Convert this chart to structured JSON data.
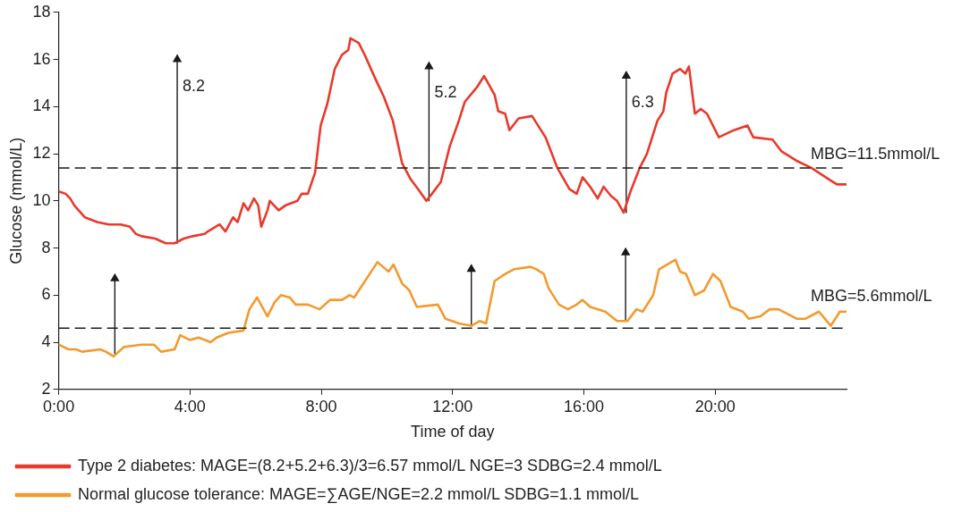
{
  "chart_data": {
    "type": "line",
    "xlabel": "Time of day",
    "ylabel": "Glucose (mmol/L)",
    "xlim": [
      0,
      24
    ],
    "xticks": [
      {
        "value": 0,
        "label": "0:00"
      },
      {
        "value": 4,
        "label": "4:00"
      },
      {
        "value": 8,
        "label": "8:00"
      },
      {
        "value": 12,
        "label": "12:00"
      },
      {
        "value": 16,
        "label": "16:00"
      },
      {
        "value": 20,
        "label": "20:00"
      }
    ],
    "ylim": [
      2,
      18
    ],
    "yticks": [
      2,
      4,
      6,
      8,
      10,
      12,
      14,
      16,
      18
    ],
    "grid": false,
    "legend": "bottom",
    "marker": "none",
    "line_style": "solid",
    "series": [
      {
        "name": "Type 2 diabetes: MAGE=(8.2+5.2+6.3)/3=6.57 mmol/L NGE=3 SDBG=2.4 mmol/L",
        "color": "#e8392c",
        "x": [
          0,
          0.21,
          0.35,
          0.48,
          0.8,
          1.17,
          1.53,
          1.89,
          2.17,
          2.35,
          2.53,
          2.94,
          3.26,
          3.53,
          3.81,
          4.08,
          4.45,
          4.54,
          4.9,
          5.08,
          5.31,
          5.45,
          5.63,
          5.77,
          5.95,
          6.08,
          6.17,
          6.36,
          6.43,
          6.7,
          6.9,
          7.27,
          7.4,
          7.59,
          7.81,
          7.98,
          8.18,
          8.41,
          8.63,
          8.82,
          8.89,
          9.14,
          9.32,
          9.64,
          9.91,
          10.18,
          10.46,
          10.73,
          11.0,
          11.2,
          11.37,
          11.64,
          11.91,
          12.19,
          12.37,
          12.73,
          12.96,
          13.28,
          13.39,
          13.6,
          13.73,
          14.01,
          14.42,
          14.83,
          15.19,
          15.56,
          15.78,
          15.96,
          16.19,
          16.42,
          16.6,
          16.83,
          17.01,
          17.21,
          17.42,
          17.7,
          17.92,
          18.24,
          18.42,
          18.51,
          18.7,
          18.93,
          19.09,
          19.2,
          19.38,
          19.56,
          19.75,
          20.11,
          20.57,
          20.98,
          21.16,
          21.75,
          22.02,
          22.48,
          22.93,
          23.48,
          23.71,
          24
        ],
        "values": [
          10.4,
          10.3,
          10.1,
          9.8,
          9.3,
          9.1,
          9.0,
          9.0,
          8.9,
          8.6,
          8.5,
          8.4,
          8.2,
          8.2,
          8.4,
          8.5,
          8.6,
          8.7,
          9.0,
          8.7,
          9.3,
          9.1,
          9.9,
          9.6,
          10.1,
          9.8,
          8.9,
          9.6,
          10.0,
          9.6,
          9.8,
          10.0,
          10.3,
          10.3,
          11.2,
          13.2,
          14.1,
          15.6,
          16.2,
          16.4,
          16.9,
          16.7,
          16.2,
          15.2,
          14.4,
          13.4,
          11.6,
          10.9,
          10.4,
          10.0,
          10.3,
          10.8,
          12.3,
          13.4,
          14.2,
          14.8,
          15.3,
          14.5,
          13.8,
          13.7,
          13.0,
          13.5,
          13.6,
          12.7,
          11.4,
          10.5,
          10.3,
          11.0,
          10.6,
          10.1,
          10.6,
          10.2,
          10.0,
          9.5,
          10.4,
          11.4,
          12.0,
          13.4,
          13.8,
          14.6,
          15.4,
          15.6,
          15.4,
          15.7,
          13.7,
          13.9,
          13.7,
          12.7,
          13.0,
          13.2,
          12.7,
          12.6,
          12.1,
          11.7,
          11.4,
          10.9,
          10.7,
          10.7
        ]
      },
      {
        "name": "Normal glucose tolerance: MAGE=∑AGE/NGE=2.2 mmol/L SDBG=1.1 mmol/L",
        "color": "#f29a2e",
        "x": [
          0,
          0.3,
          0.53,
          0.71,
          1.26,
          1.44,
          1.67,
          1.99,
          2.53,
          2.9,
          3.12,
          3.53,
          3.7,
          3.99,
          4.26,
          4.63,
          4.81,
          5.17,
          5.63,
          5.81,
          6.04,
          6.36,
          6.58,
          6.77,
          7.04,
          7.22,
          7.59,
          7.95,
          8.27,
          8.63,
          8.86,
          9.0,
          9.71,
          10.05,
          10.2,
          10.46,
          10.68,
          10.91,
          11.55,
          11.78,
          12.19,
          12.57,
          12.82,
          13.02,
          13.28,
          13.6,
          13.87,
          14.37,
          14.55,
          14.78,
          14.92,
          15.24,
          15.51,
          15.78,
          15.96,
          16.19,
          16.65,
          17.01,
          17.33,
          17.6,
          17.79,
          18.11,
          18.29,
          18.79,
          18.93,
          19.11,
          19.38,
          19.66,
          19.93,
          20.16,
          20.47,
          20.84,
          21.02,
          21.38,
          21.66,
          21.93,
          22.48,
          22.75,
          23.16,
          23.52,
          23.8,
          24
        ],
        "values": [
          3.9,
          3.7,
          3.7,
          3.6,
          3.7,
          3.6,
          3.4,
          3.8,
          3.9,
          3.9,
          3.6,
          3.7,
          4.3,
          4.1,
          4.2,
          4.0,
          4.2,
          4.4,
          4.5,
          5.4,
          5.9,
          5.1,
          5.7,
          6.0,
          5.9,
          5.6,
          5.6,
          5.4,
          5.8,
          5.8,
          6.0,
          5.9,
          7.4,
          7.0,
          7.3,
          6.5,
          6.2,
          5.5,
          5.6,
          5.0,
          4.8,
          4.7,
          4.9,
          4.8,
          6.6,
          6.9,
          7.1,
          7.2,
          7.1,
          6.9,
          6.3,
          5.6,
          5.4,
          5.6,
          5.8,
          5.5,
          5.3,
          4.9,
          4.9,
          5.4,
          5.3,
          6.0,
          7.1,
          7.5,
          7.0,
          6.9,
          6.0,
          6.2,
          6.9,
          6.6,
          5.5,
          5.3,
          5.0,
          5.1,
          5.4,
          5.4,
          5.0,
          5.0,
          5.3,
          4.7,
          5.3,
          5.3
        ]
      },
      {
        "color": "#1a1a1a",
        "marker": "triangle",
        "x": [
          3.61,
          3.61
        ],
        "values": [
          8.2,
          16.0
        ]
      },
      {
        "color": "#1a1a1a",
        "marker": "triangle",
        "x": [
          11.28,
          11.28
        ],
        "values": [
          10.0,
          15.7
        ]
      },
      {
        "color": "#1a1a1a",
        "marker": "triangle",
        "x": [
          17.29,
          17.29
        ],
        "values": [
          9.5,
          15.3
        ]
      },
      {
        "color": "#1a1a1a",
        "marker": "triangle",
        "x": [
          1.71,
          1.71
        ],
        "values": [
          3.5,
          6.7
        ]
      },
      {
        "color": "#1a1a1a",
        "marker": "triangle",
        "x": [
          12.57,
          12.57
        ],
        "values": [
          4.7,
          7.1
        ]
      },
      {
        "color": "#1a1a1a",
        "marker": "triangle",
        "x": [
          17.27,
          17.27
        ],
        "values": [
          4.9,
          7.8
        ]
      }
    ],
    "ref_lines": [
      {
        "axis": "y",
        "value": 11.4,
        "color": "#1a1a1a",
        "line_style": "dashed"
      },
      {
        "axis": "y",
        "value": 4.6,
        "color": "#1a1a1a",
        "line_style": "dashed"
      }
    ],
    "annotations": [
      "8.2",
      "5.2",
      "6.3",
      "MBG=11.5mmol/L",
      "MBG=5.6mmol/L"
    ]
  }
}
